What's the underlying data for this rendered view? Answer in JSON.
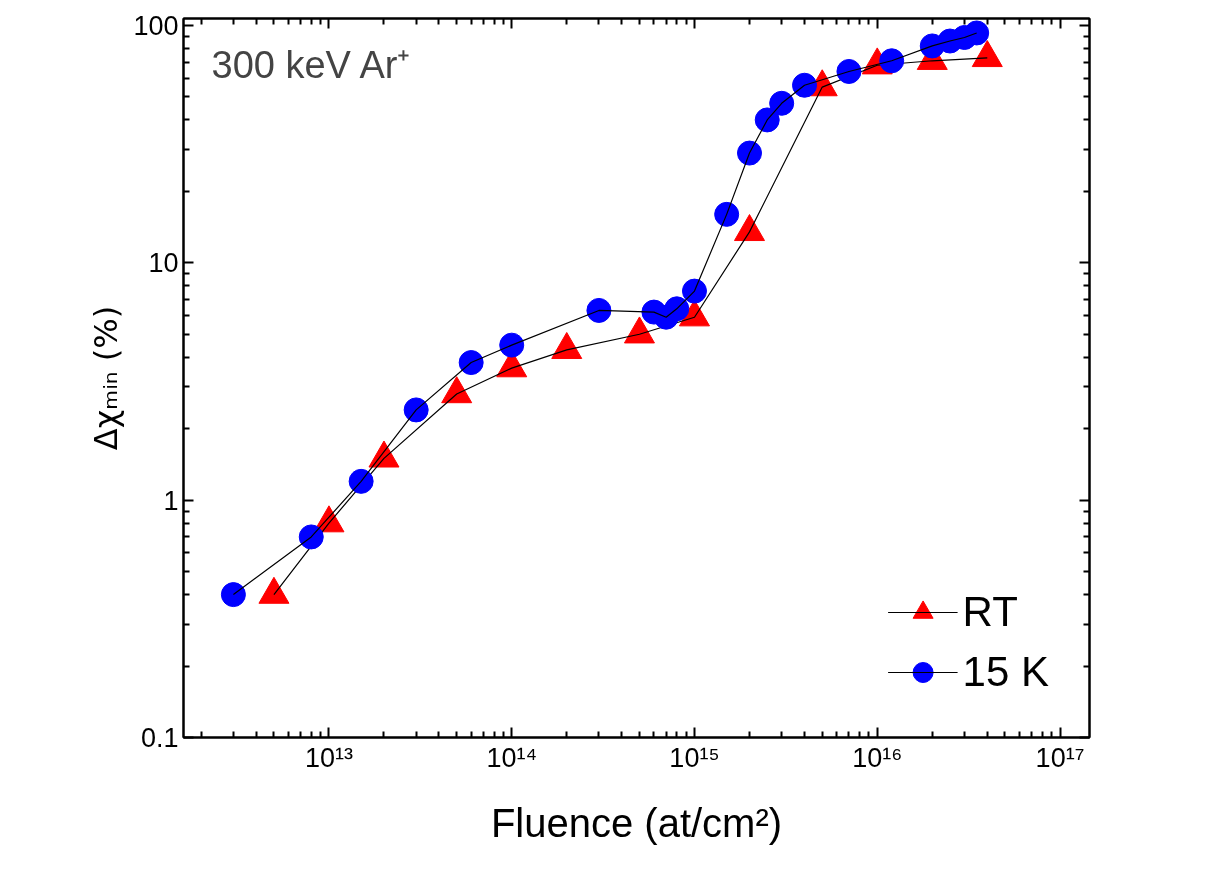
{
  "chart_data": {
    "type": "line",
    "xlabel": "Fluence (at/cm²)",
    "ylabel": "Δχₘᵢₙ (%)",
    "annotations": [
      "300 keV Ar⁺"
    ],
    "log": "xy",
    "grid": false,
    "legend": "bottom right",
    "line_style": "solid",
    "xlim": [
      1600000000000.0,
      1.45e+17
    ],
    "ylim": [
      0.1,
      107
    ],
    "xticks": [
      {
        "value": 10000000000000.0,
        "label": "10¹³"
      },
      {
        "value": 100000000000000.0,
        "label": "10¹⁴"
      },
      {
        "value": 1000000000000000.0,
        "label": "10¹⁵"
      },
      {
        "value": 1e+16,
        "label": "10¹⁶"
      },
      {
        "value": 1e+17,
        "label": "10¹⁷"
      }
    ],
    "yticks": [
      0.1,
      1,
      10,
      100
    ],
    "series": [
      {
        "name": "RT",
        "color": "#ff0000",
        "marker": "triangle",
        "x": [
          5000000000000.0,
          10000000000000.0,
          20000000000000.0,
          50000000000000.0,
          100000000000000.0,
          200000000000000.0,
          500000000000000.0,
          1000000000000000.0,
          2000000000000000.0,
          5000000000000000.0,
          1e+16,
          2e+16,
          4e+16
        ],
        "values": [
          0.4,
          0.8,
          1.5,
          2.8,
          3.6,
          4.3,
          5.0,
          5.9,
          13.5,
          55,
          68,
          71,
          73
        ]
      },
      {
        "name": "15 K",
        "color": "#0000ff",
        "marker": "circle",
        "x": [
          3000000000000.0,
          8000000000000.0,
          15000000000000.0,
          30000000000000.0,
          60000000000000.0,
          100000000000000.0,
          300000000000000.0,
          600000000000000.0,
          700000000000000.0,
          800000000000000.0,
          1000000000000000.0,
          1500000000000000.0,
          2000000000000000.0,
          2500000000000000.0,
          3000000000000000.0,
          4000000000000000.0,
          7000000000000000.0,
          1.2e+16,
          2e+16,
          2.5e+16,
          3e+16,
          3.5e+16
        ],
        "values": [
          0.4,
          0.7,
          1.2,
          2.4,
          3.8,
          4.5,
          6.3,
          6.2,
          5.9,
          6.4,
          7.6,
          16,
          29,
          40,
          47,
          56,
          64,
          71,
          82,
          86,
          89,
          93
        ]
      }
    ]
  }
}
